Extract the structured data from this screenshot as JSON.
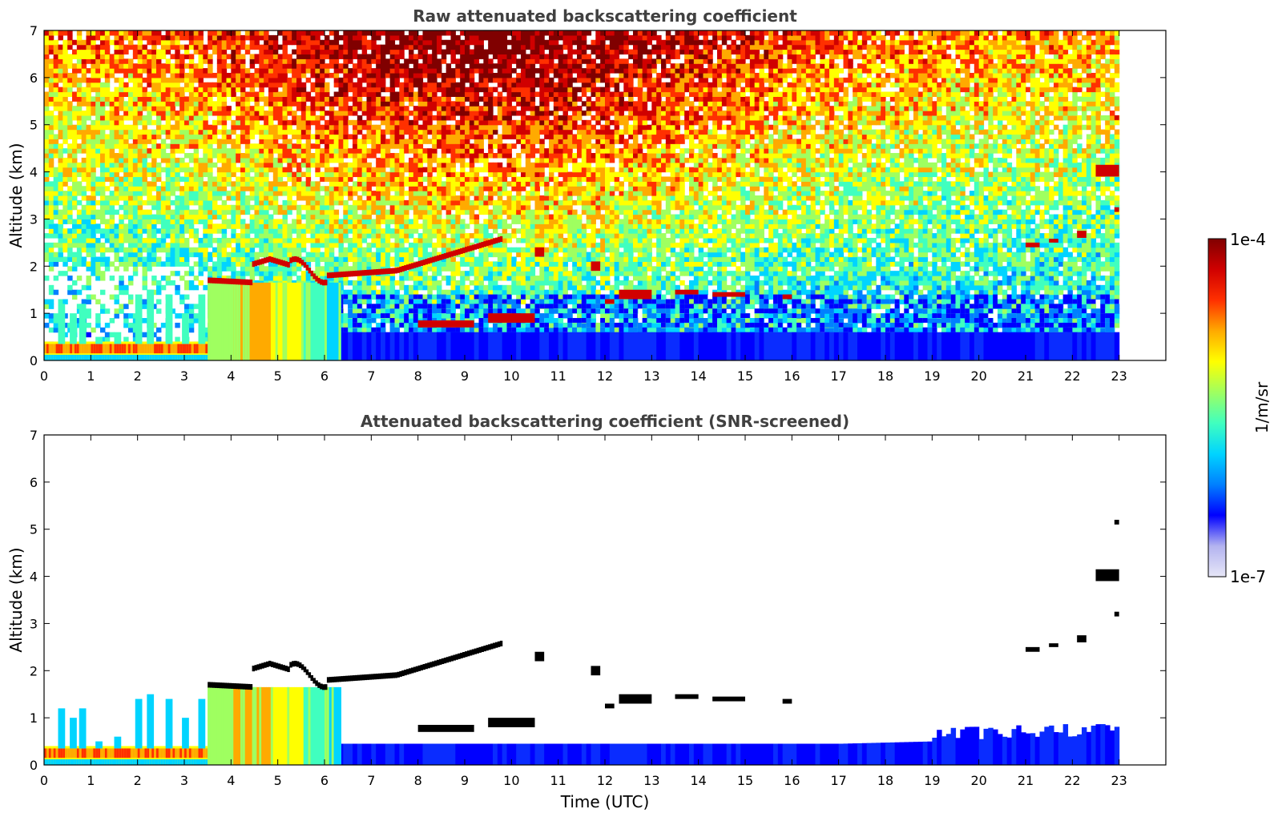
{
  "chart_data": [
    {
      "type": "heatmap",
      "title": "Raw attenuated backscattering coefficient",
      "xlabel": "",
      "ylabel": "Altitude (km)",
      "xlim": [
        0,
        24
      ],
      "ylim": [
        0,
        7
      ],
      "x_ticks": [
        "0",
        "1",
        "2",
        "3",
        "4",
        "5",
        "6",
        "7",
        "8",
        "9",
        "10",
        "11",
        "12",
        "13",
        "14",
        "15",
        "16",
        "17",
        "18",
        "19",
        "20",
        "21",
        "22",
        "23"
      ],
      "y_ticks": [
        "0",
        "1",
        "2",
        "3",
        "4",
        "5",
        "6",
        "7"
      ],
      "data_time_range": [
        0,
        23
      ],
      "screened": false,
      "features": {
        "surface_aerosol_layer": {
          "time": [
            0,
            3.5
          ],
          "altitude_top": 0.4
        },
        "dense_aerosol_layer": {
          "time": [
            3.5,
            6.3
          ],
          "altitude_top": 1.7
        },
        "elevated_layer": {
          "time": [
            3.5,
            9.8
          ],
          "altitude": [
            1.7,
            2.6
          ]
        },
        "boundary_layer": {
          "time": [
            6.3,
            23
          ],
          "altitude_top": 0.6
        },
        "low_clouds": {
          "time": [
            8,
            16
          ],
          "altitude": [
            0.7,
            1.5
          ]
        },
        "high_clouds": {
          "time": [
            22.5,
            23
          ],
          "altitude": [
            2.6,
            4.1
          ]
        }
      }
    },
    {
      "type": "heatmap",
      "title": "Attenuated backscattering coefficient (SNR-screened)",
      "xlabel": "Time (UTC)",
      "ylabel": "Altitude (km)",
      "xlim": [
        0,
        24
      ],
      "ylim": [
        0,
        7
      ],
      "x_ticks": [
        "0",
        "1",
        "2",
        "3",
        "4",
        "5",
        "6",
        "7",
        "8",
        "9",
        "10",
        "11",
        "12",
        "13",
        "14",
        "15",
        "16",
        "17",
        "18",
        "19",
        "20",
        "21",
        "22",
        "23"
      ],
      "y_ticks": [
        "0",
        "1",
        "2",
        "3",
        "4",
        "5",
        "6",
        "7"
      ],
      "data_time_range": [
        0,
        23
      ],
      "screened": true
    }
  ],
  "colorbar": {
    "label": "1/m/sr",
    "max_label": "1e-4",
    "min_label": "1e-7",
    "scale": "log",
    "range": [
      1e-07,
      0.0001
    ],
    "colormap": "jet",
    "colors": [
      "#e6e6f7",
      "#b3b3f0",
      "#0000ff",
      "#0080ff",
      "#00d4ff",
      "#40ffbf",
      "#9fff60",
      "#ffff00",
      "#ffaa00",
      "#ff3000",
      "#d00000",
      "#800000"
    ]
  }
}
